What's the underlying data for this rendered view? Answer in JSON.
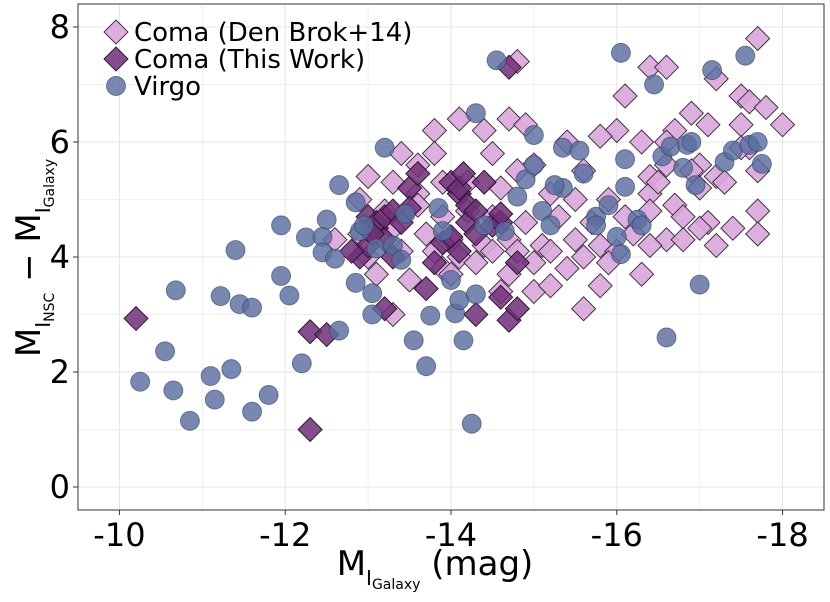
{
  "chart_data": {
    "type": "scatter",
    "title": "",
    "x_axis": {
      "label_main": "M",
      "label_sub": "I",
      "label_subsub": "Galaxy",
      "label_suffix": " (mag)",
      "range": [
        -9.5,
        -18.5
      ],
      "reversed": true,
      "ticks": [
        -10,
        -12,
        -14,
        -16,
        -18
      ],
      "tick_labels": [
        "-10",
        "-12",
        "-14",
        "-16",
        "-18"
      ]
    },
    "y_axis": {
      "label_main1": "M",
      "label_sub1": "I",
      "label_subsub1": "NSC",
      "label_minus": " − ",
      "label_main2": "M",
      "label_sub2": "I",
      "label_subsub2": "Galaxy",
      "range": [
        -0.4,
        8.4
      ],
      "ticks": [
        0,
        2,
        4,
        6,
        8
      ],
      "tick_labels": [
        "0",
        "2",
        "4",
        "6",
        "8"
      ]
    },
    "grid": true,
    "legend_position": "top-left",
    "series": [
      {
        "name": "Coma (Den Brok+14)",
        "marker": "diamond",
        "color": "#d9a6dc",
        "edge": "#3a2a3a",
        "points": [
          [
            -17.7,
            7.8
          ],
          [
            -16.4,
            7.3
          ],
          [
            -16.6,
            7.3
          ],
          [
            -14.8,
            7.4
          ],
          [
            -17.2,
            7.1
          ],
          [
            -17.5,
            6.8
          ],
          [
            -17.6,
            6.7
          ],
          [
            -17.8,
            6.6
          ],
          [
            -18.0,
            6.3
          ],
          [
            -16.1,
            6.8
          ],
          [
            -16.9,
            6.5
          ],
          [
            -17.1,
            6.3
          ],
          [
            -17.5,
            6.3
          ],
          [
            -14.1,
            6.4
          ],
          [
            -14.7,
            6.4
          ],
          [
            -14.4,
            6.2
          ],
          [
            -14.9,
            6.3
          ],
          [
            -13.8,
            6.2
          ],
          [
            -15.4,
            6.0
          ],
          [
            -16.0,
            6.2
          ],
          [
            -16.7,
            6.2
          ],
          [
            -16.6,
            6.0
          ],
          [
            -15.8,
            6.1
          ],
          [
            -16.3,
            6.0
          ],
          [
            -17.6,
            5.9
          ],
          [
            -17.0,
            5.6
          ],
          [
            -17.2,
            5.4
          ],
          [
            -17.7,
            5.5
          ],
          [
            -17.5,
            5.9
          ],
          [
            -13.4,
            5.8
          ],
          [
            -13.6,
            5.6
          ],
          [
            -13.8,
            5.8
          ],
          [
            -14.5,
            5.8
          ],
          [
            -15.0,
            5.6
          ],
          [
            -15.6,
            5.5
          ],
          [
            -16.4,
            5.4
          ],
          [
            -16.6,
            5.6
          ],
          [
            -16.9,
            5.5
          ],
          [
            -17.3,
            5.3
          ],
          [
            -13.0,
            5.4
          ],
          [
            -13.3,
            5.3
          ],
          [
            -13.6,
            5.1
          ],
          [
            -13.9,
            5.3
          ],
          [
            -14.2,
            5.3
          ],
          [
            -14.6,
            5.2
          ],
          [
            -14.8,
            5.5
          ],
          [
            -15.2,
            5.1
          ],
          [
            -15.5,
            5.0
          ],
          [
            -15.9,
            5.0
          ],
          [
            -16.4,
            5.1
          ],
          [
            -16.7,
            4.9
          ],
          [
            -17.0,
            5.2
          ],
          [
            -17.7,
            4.8
          ],
          [
            -12.9,
            5.0
          ],
          [
            -13.2,
            4.8
          ],
          [
            -13.6,
            4.9
          ],
          [
            -13.9,
            4.7
          ],
          [
            -14.2,
            4.8
          ],
          [
            -14.5,
            4.7
          ],
          [
            -14.9,
            4.6
          ],
          [
            -15.3,
            4.7
          ],
          [
            -15.7,
            4.6
          ],
          [
            -16.1,
            4.7
          ],
          [
            -16.4,
            4.8
          ],
          [
            -16.8,
            4.7
          ],
          [
            -17.1,
            4.6
          ],
          [
            -12.9,
            4.4
          ],
          [
            -13.3,
            4.5
          ],
          [
            -13.7,
            4.4
          ],
          [
            -14.0,
            4.3
          ],
          [
            -14.4,
            4.2
          ],
          [
            -14.7,
            4.3
          ],
          [
            -15.1,
            4.2
          ],
          [
            -15.5,
            4.3
          ],
          [
            -15.8,
            4.2
          ],
          [
            -16.2,
            4.4
          ],
          [
            -16.6,
            4.3
          ],
          [
            -17.0,
            4.5
          ],
          [
            -17.4,
            4.5
          ],
          [
            -17.7,
            4.4
          ],
          [
            -12.6,
            4.3
          ],
          [
            -13.0,
            4.0
          ],
          [
            -13.4,
            4.1
          ],
          [
            -13.8,
            4.1
          ],
          [
            -14.1,
            4.0
          ],
          [
            -14.5,
            4.1
          ],
          [
            -14.8,
            4.1
          ],
          [
            -15.2,
            4.1
          ],
          [
            -15.6,
            4.0
          ],
          [
            -16.0,
            4.1
          ],
          [
            -16.4,
            4.2
          ],
          [
            -16.8,
            4.3
          ],
          [
            -17.2,
            4.2
          ],
          [
            -13.1,
            3.7
          ],
          [
            -13.5,
            3.6
          ],
          [
            -13.9,
            3.8
          ],
          [
            -14.3,
            3.9
          ],
          [
            -14.7,
            3.7
          ],
          [
            -15.0,
            3.9
          ],
          [
            -15.4,
            3.8
          ],
          [
            -15.9,
            3.9
          ],
          [
            -16.3,
            3.7
          ],
          [
            -13.3,
            3.0
          ],
          [
            -14.0,
            3.7
          ],
          [
            -14.6,
            3.4
          ],
          [
            -15.0,
            3.4
          ],
          [
            -15.2,
            3.5
          ],
          [
            -15.6,
            3.1
          ],
          [
            -15.8,
            3.5
          ],
          [
            -16.5,
            5.3
          ]
        ]
      },
      {
        "name": "Coma (This Work)",
        "marker": "diamond",
        "color": "#6e2f78",
        "edge": "#2a102e",
        "points": [
          [
            -14.7,
            7.3
          ],
          [
            -10.2,
            2.93
          ],
          [
            -12.3,
            1.0
          ],
          [
            -12.3,
            2.7
          ],
          [
            -12.5,
            2.65
          ],
          [
            -13.2,
            3.1
          ],
          [
            -13.7,
            3.45
          ],
          [
            -14.3,
            3.0
          ],
          [
            -14.7,
            2.9
          ],
          [
            -14.8,
            3.1
          ],
          [
            -14.6,
            3.3
          ],
          [
            -14.8,
            3.9
          ],
          [
            -12.9,
            4.0
          ],
          [
            -13.0,
            4.2
          ],
          [
            -13.1,
            4.5
          ],
          [
            -13.2,
            4.3
          ],
          [
            -13.3,
            4.0
          ],
          [
            -13.0,
            4.7
          ],
          [
            -13.1,
            4.6
          ],
          [
            -13.2,
            4.7
          ],
          [
            -13.3,
            4.8
          ],
          [
            -13.4,
            4.6
          ],
          [
            -13.5,
            5.2
          ],
          [
            -13.6,
            5.45
          ],
          [
            -13.5,
            4.85
          ],
          [
            -13.9,
            4.25
          ],
          [
            -14.0,
            4.35
          ],
          [
            -14.0,
            5.3
          ],
          [
            -14.1,
            5.1
          ],
          [
            -14.1,
            5.2
          ],
          [
            -14.15,
            5.45
          ],
          [
            -14.2,
            4.9
          ],
          [
            -14.2,
            4.6
          ],
          [
            -14.3,
            4.4
          ],
          [
            -14.3,
            4.8
          ],
          [
            -14.4,
            5.3
          ],
          [
            -14.5,
            4.55
          ],
          [
            -14.6,
            4.6
          ],
          [
            -14.6,
            4.75
          ],
          [
            -14.1,
            4.1
          ],
          [
            -13.8,
            3.9
          ],
          [
            -12.8,
            4.1
          ],
          [
            -13.05,
            4.4
          ]
        ]
      },
      {
        "name": "Virgo",
        "marker": "circle",
        "color": "#5a6ea0",
        "edge": "#2f3c5c",
        "points": [
          [
            -10.25,
            1.83
          ],
          [
            -10.55,
            2.36
          ],
          [
            -10.65,
            1.68
          ],
          [
            -10.68,
            3.42
          ],
          [
            -10.85,
            1.15
          ],
          [
            -11.1,
            1.93
          ],
          [
            -11.15,
            1.52
          ],
          [
            -11.22,
            3.32
          ],
          [
            -11.35,
            2.05
          ],
          [
            -11.4,
            4.12
          ],
          [
            -11.45,
            3.18
          ],
          [
            -11.6,
            1.31
          ],
          [
            -11.6,
            3.12
          ],
          [
            -11.8,
            1.6
          ],
          [
            -11.95,
            4.55
          ],
          [
            -11.95,
            3.67
          ],
          [
            -12.05,
            3.33
          ],
          [
            -12.2,
            2.15
          ],
          [
            -12.25,
            4.34
          ],
          [
            -12.45,
            4.35
          ],
          [
            -12.45,
            4.08
          ],
          [
            -12.5,
            4.65
          ],
          [
            -12.6,
            3.97
          ],
          [
            -12.65,
            2.72
          ],
          [
            -12.65,
            5.25
          ],
          [
            -12.85,
            3.55
          ],
          [
            -12.85,
            4.95
          ],
          [
            -12.9,
            4.45
          ],
          [
            -12.95,
            4.55
          ],
          [
            -13.05,
            3.37
          ],
          [
            -13.05,
            3.0
          ],
          [
            -13.1,
            4.15
          ],
          [
            -13.2,
            5.9
          ],
          [
            -13.3,
            4.2
          ],
          [
            -13.4,
            3.95
          ],
          [
            -13.45,
            4.75
          ],
          [
            -13.55,
            2.55
          ],
          [
            -13.7,
            2.1
          ],
          [
            -13.75,
            2.98
          ],
          [
            -13.85,
            4.85
          ],
          [
            -13.9,
            4.45
          ],
          [
            -14.0,
            3.6
          ],
          [
            -14.05,
            3.02
          ],
          [
            -14.1,
            3.25
          ],
          [
            -14.15,
            2.55
          ],
          [
            -14.25,
            1.1
          ],
          [
            -14.3,
            3.35
          ],
          [
            -14.3,
            6.5
          ],
          [
            -14.4,
            4.55
          ],
          [
            -14.55,
            7.42
          ],
          [
            -14.65,
            4.45
          ],
          [
            -14.8,
            5.05
          ],
          [
            -14.9,
            5.35
          ],
          [
            -15.0,
            6.12
          ],
          [
            -15.0,
            5.6
          ],
          [
            -15.1,
            4.8
          ],
          [
            -15.2,
            4.55
          ],
          [
            -15.35,
            5.2
          ],
          [
            -15.35,
            5.9
          ],
          [
            -15.55,
            5.85
          ],
          [
            -15.6,
            5.45
          ],
          [
            -15.75,
            4.7
          ],
          [
            -15.75,
            4.55
          ],
          [
            -15.9,
            4.9
          ],
          [
            -16.0,
            4.35
          ],
          [
            -16.05,
            4.05
          ],
          [
            -16.05,
            7.55
          ],
          [
            -16.1,
            5.7
          ],
          [
            -16.1,
            5.22
          ],
          [
            -16.25,
            4.65
          ],
          [
            -16.3,
            4.55
          ],
          [
            -16.45,
            7.0
          ],
          [
            -16.55,
            5.75
          ],
          [
            -16.6,
            2.6
          ],
          [
            -16.65,
            5.92
          ],
          [
            -16.8,
            5.55
          ],
          [
            -16.85,
            5.95
          ],
          [
            -16.95,
            5.25
          ],
          [
            -17.0,
            3.52
          ],
          [
            -17.15,
            7.25
          ],
          [
            -17.3,
            5.65
          ],
          [
            -17.4,
            5.85
          ],
          [
            -17.55,
            7.5
          ],
          [
            -17.6,
            5.95
          ],
          [
            -17.75,
            5.62
          ],
          [
            -17.7,
            6.0
          ],
          [
            -15.25,
            5.25
          ],
          [
            -16.9,
            6.0
          ]
        ]
      }
    ]
  }
}
